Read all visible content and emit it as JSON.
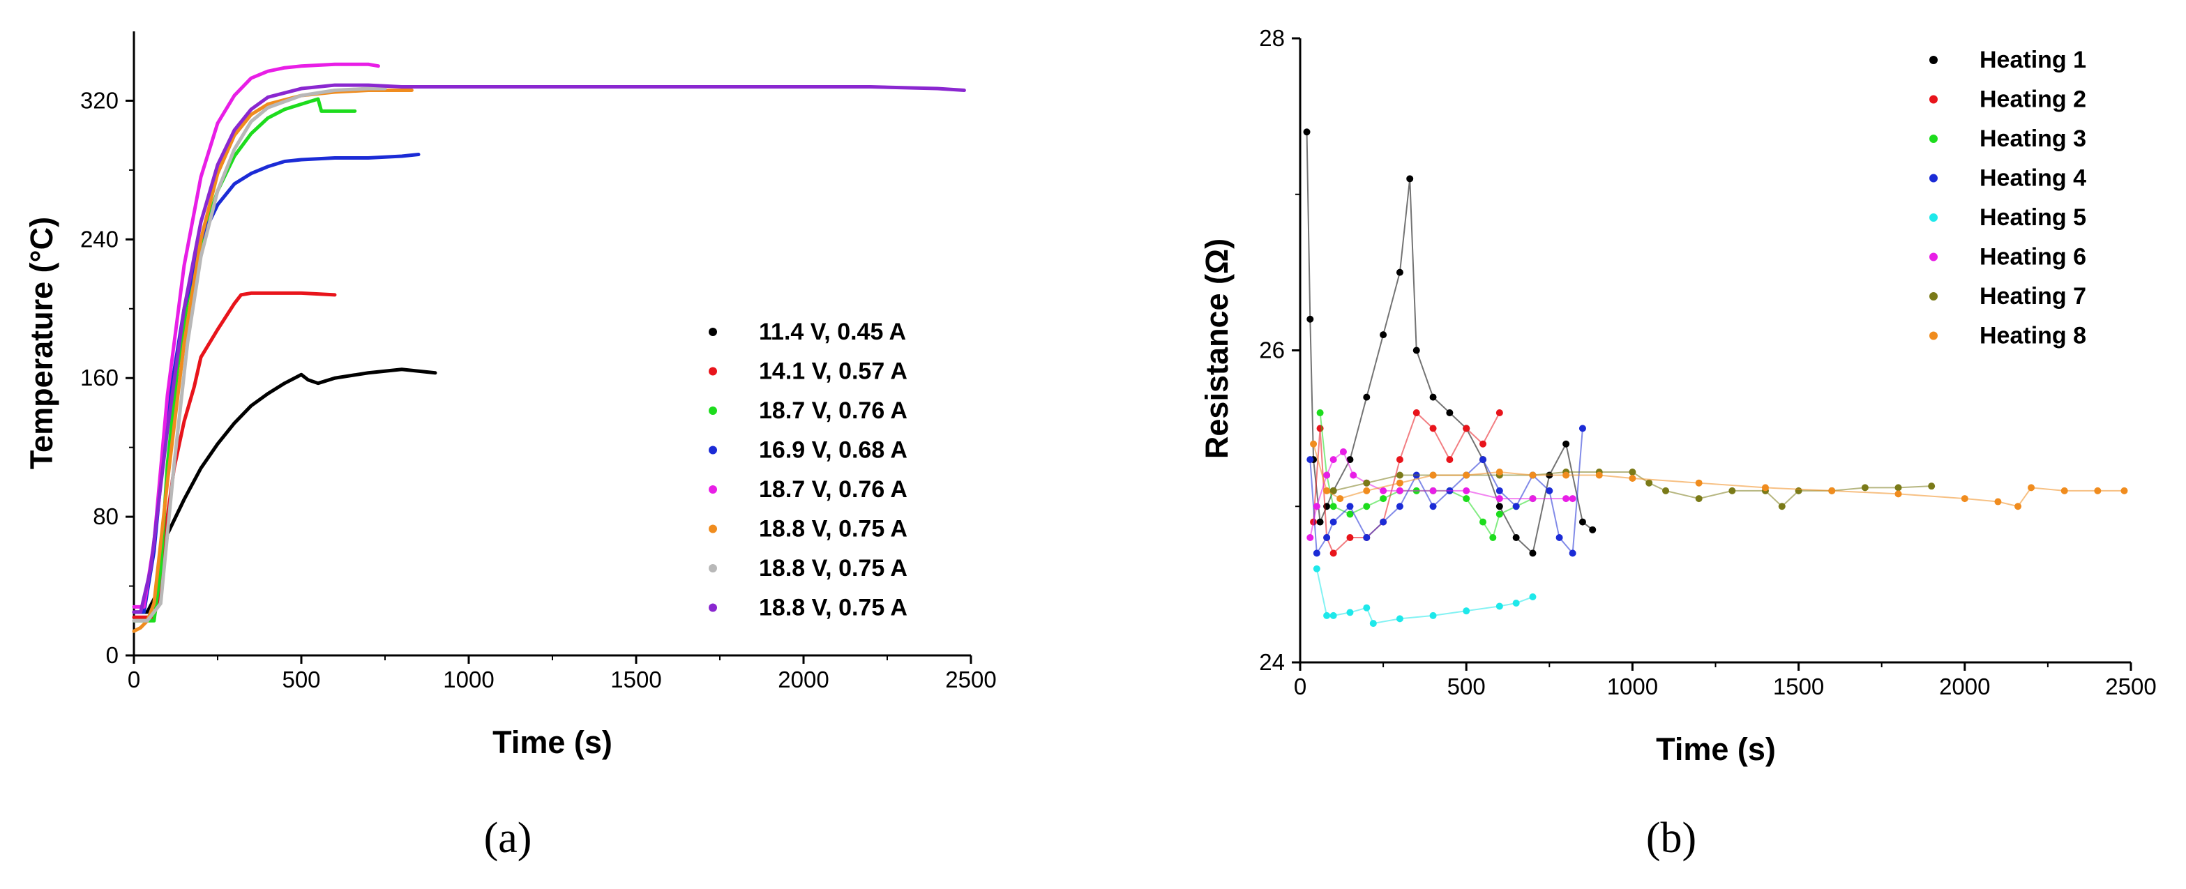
{
  "chart_data": [
    {
      "type": "line",
      "panel_label": "(a)",
      "xlabel": "Time (s)",
      "ylabel": "Temperature (°C)",
      "xlim": [
        0,
        2500
      ],
      "ylim": [
        0,
        360
      ],
      "xticks": [
        0,
        500,
        1000,
        1500,
        2000,
        2500
      ],
      "yticks": [
        0,
        80,
        160,
        240,
        320
      ],
      "grid": false,
      "legend_position": "bottom-right",
      "series": [
        {
          "name": "11.4 V, 0.45 A",
          "color": "#000000",
          "x": [
            0,
            40,
            80,
            100,
            150,
            200,
            250,
            300,
            350,
            400,
            450,
            500,
            520,
            550,
            600,
            700,
            800,
            900
          ],
          "y": [
            25,
            25,
            40,
            70,
            90,
            108,
            122,
            134,
            144,
            151,
            157,
            162,
            159,
            157,
            160,
            163,
            165,
            163
          ]
        },
        {
          "name": "14.1 V, 0.57 A",
          "color": "#e8141b",
          "x": [
            0,
            60,
            80,
            100,
            120,
            150,
            180,
            200,
            250,
            300,
            320,
            350,
            400,
            500,
            600
          ],
          "y": [
            22,
            22,
            40,
            80,
            108,
            135,
            155,
            172,
            188,
            203,
            208,
            209,
            209,
            209,
            208
          ]
        },
        {
          "name": "18.7 V, 0.76 A",
          "color": "#1ddc1d",
          "x": [
            0,
            60,
            80,
            100,
            130,
            160,
            200,
            250,
            300,
            350,
            400,
            450,
            500,
            550,
            560,
            580,
            620,
            660
          ],
          "y": [
            20,
            20,
            50,
            110,
            165,
            205,
            238,
            268,
            288,
            301,
            310,
            315,
            318,
            321,
            314,
            314,
            314,
            314
          ]
        },
        {
          "name": "16.9 V, 0.68 A",
          "color": "#1b2bd6",
          "x": [
            0,
            30,
            60,
            100,
            150,
            200,
            250,
            300,
            350,
            400,
            450,
            500,
            600,
            700,
            800,
            850
          ],
          "y": [
            25,
            25,
            60,
            140,
            200,
            240,
            260,
            272,
            278,
            282,
            285,
            286,
            287,
            287,
            288,
            289
          ]
        },
        {
          "name": "18.7 V, 0.76 A",
          "color": "#e81ee6",
          "x": [
            0,
            30,
            60,
            100,
            150,
            200,
            250,
            300,
            350,
            400,
            450,
            500,
            600,
            700,
            730
          ],
          "y": [
            28,
            28,
            65,
            150,
            225,
            276,
            307,
            323,
            333,
            337,
            339,
            340,
            341,
            341,
            340
          ]
        },
        {
          "name": "18.8 V, 0.75 A",
          "color": "#f08c1e",
          "x": [
            0,
            20,
            40,
            60,
            100,
            150,
            200,
            250,
            300,
            350,
            400,
            500,
            600,
            700,
            800,
            830
          ],
          "y": [
            14,
            16,
            20,
            30,
            100,
            180,
            240,
            278,
            300,
            312,
            318,
            323,
            325,
            326,
            326,
            326
          ]
        },
        {
          "name": "18.8 V, 0.75 A",
          "color": "#b8b8b8",
          "x": [
            0,
            40,
            80,
            120,
            160,
            200,
            250,
            300,
            350,
            400,
            500,
            600,
            700,
            750
          ],
          "y": [
            20,
            20,
            30,
            110,
            180,
            230,
            268,
            292,
            308,
            316,
            323,
            326,
            327,
            327
          ]
        },
        {
          "name": "18.8 V, 0.75 A",
          "color": "#8a27d0",
          "x": [
            0,
            20,
            50,
            100,
            150,
            200,
            250,
            300,
            350,
            400,
            500,
            600,
            700,
            800,
            1000,
            1500,
            2000,
            2200,
            2400,
            2480
          ],
          "y": [
            25,
            25,
            50,
            130,
            200,
            250,
            283,
            303,
            315,
            322,
            327,
            329,
            329,
            328,
            328,
            328,
            328,
            328,
            327,
            326
          ]
        }
      ]
    },
    {
      "type": "scatter",
      "panel_label": "(b)",
      "xlabel": "Time (s)",
      "ylabel": "Resistance (Ω)",
      "xlim": [
        0,
        2500
      ],
      "ylim": [
        24,
        28
      ],
      "xticks": [
        0,
        500,
        1000,
        1500,
        2000,
        2500
      ],
      "yticks": [
        24,
        26,
        28
      ],
      "grid": false,
      "legend_position": "top-right",
      "series": [
        {
          "name": "Heating 1",
          "color": "#000000",
          "x": [
            20,
            30,
            40,
            60,
            80,
            100,
            150,
            200,
            250,
            300,
            330,
            350,
            400,
            450,
            500,
            550,
            600,
            650,
            700,
            750,
            800,
            850,
            880
          ],
          "y": [
            27.4,
            26.2,
            25.3,
            24.9,
            25.0,
            25.1,
            25.3,
            25.7,
            26.1,
            26.5,
            27.1,
            26.0,
            25.7,
            25.6,
            25.5,
            25.3,
            25.0,
            24.8,
            24.7,
            25.2,
            25.4,
            24.9,
            24.85
          ]
        },
        {
          "name": "Heating 2",
          "color": "#e8141b",
          "x": [
            40,
            60,
            80,
            100,
            150,
            200,
            250,
            300,
            350,
            400,
            450,
            500,
            550,
            600
          ],
          "y": [
            24.9,
            25.5,
            24.8,
            24.7,
            24.8,
            24.8,
            24.9,
            25.3,
            25.6,
            25.5,
            25.3,
            25.5,
            25.4,
            25.6
          ]
        },
        {
          "name": "Heating 3",
          "color": "#1ddc1d",
          "x": [
            60,
            80,
            100,
            150,
            200,
            250,
            300,
            350,
            400,
            450,
            500,
            550,
            580,
            600,
            650,
            700
          ],
          "y": [
            25.6,
            25.2,
            25.0,
            24.95,
            25.0,
            25.05,
            25.1,
            25.1,
            25.1,
            25.1,
            25.05,
            24.9,
            24.8,
            24.95,
            25.0,
            25.05
          ]
        },
        {
          "name": "Heating 4",
          "color": "#1b2bd6",
          "x": [
            30,
            50,
            80,
            100,
            150,
            200,
            250,
            300,
            350,
            400,
            450,
            500,
            550,
            600,
            650,
            700,
            750,
            780,
            820,
            850
          ],
          "y": [
            25.3,
            24.7,
            24.8,
            24.9,
            25.0,
            24.8,
            24.9,
            25.0,
            25.2,
            25.0,
            25.1,
            25.2,
            25.3,
            25.1,
            25.0,
            25.2,
            25.1,
            24.8,
            24.7,
            25.5
          ]
        },
        {
          "name": "Heating 5",
          "color": "#1ee8ea",
          "x": [
            50,
            80,
            100,
            150,
            200,
            220,
            300,
            400,
            500,
            600,
            650,
            700
          ],
          "y": [
            24.6,
            24.3,
            24.3,
            24.32,
            24.35,
            24.25,
            24.28,
            24.3,
            24.33,
            24.36,
            24.38,
            24.42
          ]
        },
        {
          "name": "Heating 6",
          "color": "#e81ee6",
          "x": [
            30,
            50,
            80,
            100,
            130,
            160,
            200,
            250,
            300,
            400,
            500,
            600,
            700,
            800,
            820
          ],
          "y": [
            24.8,
            25.0,
            25.2,
            25.3,
            25.35,
            25.2,
            25.15,
            25.1,
            25.1,
            25.1,
            25.1,
            25.05,
            25.05,
            25.05,
            25.05
          ]
        },
        {
          "name": "Heating 7",
          "color": "#7a7a18",
          "x": [
            100,
            200,
            300,
            400,
            500,
            600,
            700,
            800,
            900,
            1000,
            1050,
            1100,
            1200,
            1300,
            1400,
            1450,
            1500,
            1600,
            1700,
            1800,
            1900
          ],
          "y": [
            25.1,
            25.15,
            25.2,
            25.2,
            25.2,
            25.2,
            25.2,
            25.22,
            25.22,
            25.22,
            25.15,
            25.1,
            25.05,
            25.1,
            25.1,
            25.0,
            25.1,
            25.1,
            25.12,
            25.12,
            25.13
          ]
        },
        {
          "name": "Heating 8",
          "color": "#f08c1e",
          "x": [
            40,
            80,
            120,
            200,
            300,
            400,
            500,
            600,
            700,
            800,
            900,
            1000,
            1200,
            1400,
            1600,
            1800,
            2000,
            2100,
            2160,
            2200,
            2300,
            2400,
            2480
          ],
          "y": [
            25.4,
            25.1,
            25.05,
            25.1,
            25.15,
            25.2,
            25.2,
            25.22,
            25.2,
            25.2,
            25.2,
            25.18,
            25.15,
            25.12,
            25.1,
            25.08,
            25.05,
            25.03,
            25.0,
            25.12,
            25.1,
            25.1,
            25.1
          ]
        }
      ]
    }
  ]
}
